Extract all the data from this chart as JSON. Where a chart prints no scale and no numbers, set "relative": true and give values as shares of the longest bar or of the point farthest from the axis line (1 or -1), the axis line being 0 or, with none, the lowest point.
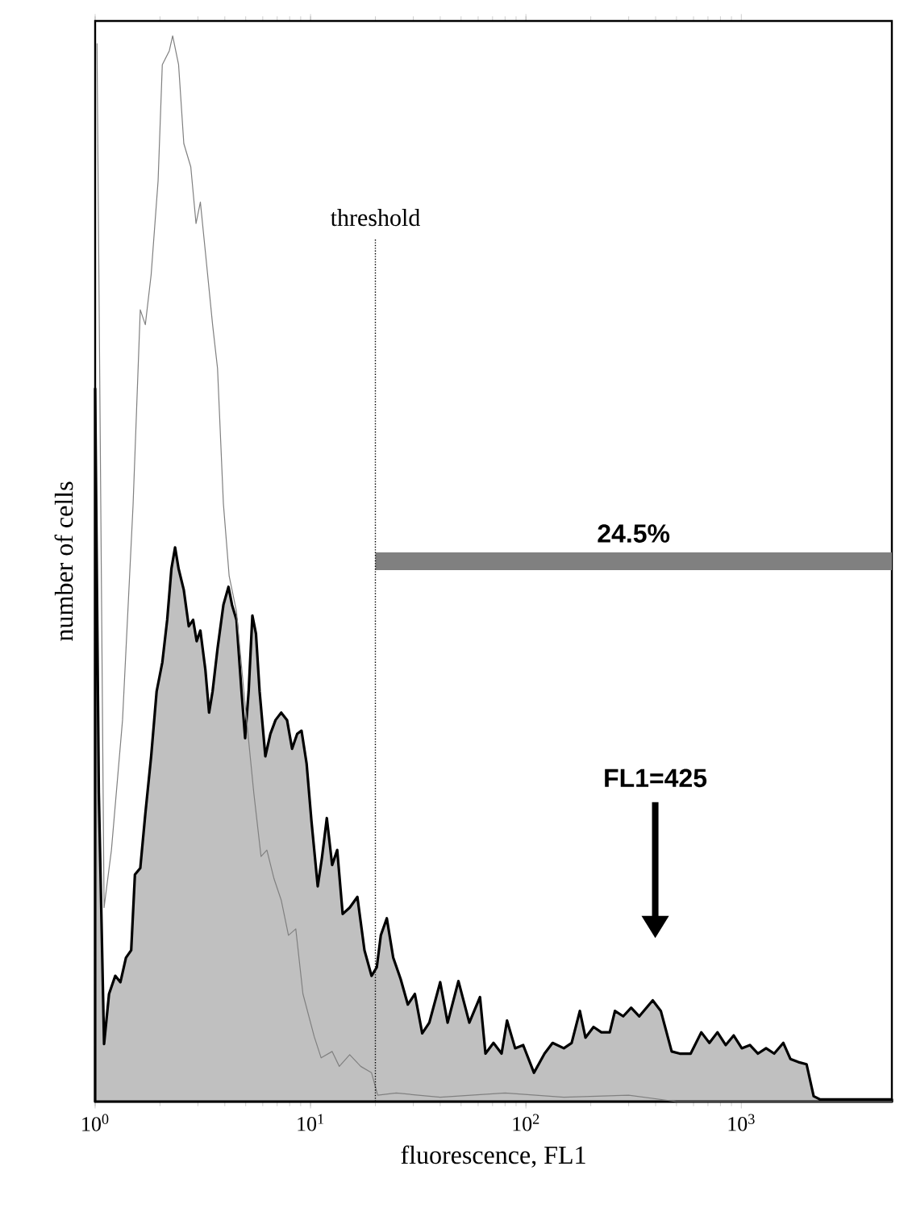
{
  "chart_data": {
    "type": "area",
    "xlabel": "fluorescence, FL1",
    "ylabel": "number of cells",
    "log": "x",
    "relative": true,
    "tick_labels": "x",
    "xlim": [
      1,
      5000
    ],
    "xticks": [
      {
        "value": 1,
        "label": "10$^{0}$"
      },
      {
        "value": 10,
        "label": "10$^{1}$"
      },
      {
        "value": 100,
        "label": "10$^{2}$"
      },
      {
        "value": 1000,
        "label": "10$^{3}$"
      }
    ],
    "series": [
      {
        "color": "#c0c0c0",
        "x": [
          1,
          1.04,
          1.1,
          1.16,
          1.24,
          1.31,
          1.39,
          1.47,
          1.53,
          1.62,
          1.71,
          1.82,
          1.93,
          2.05,
          2.16,
          2.26,
          2.35,
          2.44,
          2.58,
          2.72,
          2.85,
          2.96,
          3.08,
          3.25,
          3.38,
          3.51,
          3.7,
          3.94,
          4.16,
          4.32,
          4.53,
          4.78,
          4.97,
          5.16,
          5.37,
          5.58,
          5.8,
          6.17,
          6.51,
          6.88,
          7.31,
          7.78,
          8.21,
          8.67,
          9.08,
          9.59,
          10.1,
          10.8,
          11.3,
          11.9,
          12.6,
          13.3,
          14.1,
          15.2,
          16.5,
          17.8,
          19.2,
          20.3,
          21.2,
          22.6,
          24.2,
          26.2,
          28.3,
          30.5,
          33,
          35.6,
          40,
          43.3,
          48.6,
          54.6,
          61.2,
          64.9,
          70.7,
          77.1,
          81.7,
          89.1,
          97.1,
          109,
          122,
          133,
          150,
          163,
          178,
          189,
          206,
          224,
          245,
          259,
          283,
          308,
          336,
          388,
          423,
          475,
          518,
          582,
          652,
          711,
          775,
          846,
          922,
          1005,
          1096,
          1195,
          1303,
          1421,
          1567,
          1690,
          1842,
          2009,
          2167,
          2323,
          3680,
          5000
        ],
        "values": [
          0.669,
          0.29,
          0.054,
          0.101,
          0.118,
          0.112,
          0.135,
          0.142,
          0.213,
          0.219,
          0.27,
          0.324,
          0.385,
          0.412,
          0.452,
          0.5,
          0.52,
          0.5,
          0.48,
          0.446,
          0.452,
          0.432,
          0.442,
          0.405,
          0.365,
          0.385,
          0.425,
          0.466,
          0.483,
          0.466,
          0.452,
          0.385,
          0.341,
          0.385,
          0.456,
          0.439,
          0.385,
          0.324,
          0.345,
          0.358,
          0.365,
          0.358,
          0.331,
          0.345,
          0.348,
          0.317,
          0.263,
          0.202,
          0.229,
          0.266,
          0.222,
          0.236,
          0.176,
          0.182,
          0.192,
          0.142,
          0.118,
          0.126,
          0.156,
          0.172,
          0.135,
          0.115,
          0.091,
          0.101,
          0.064,
          0.074,
          0.112,
          0.074,
          0.113,
          0.074,
          0.098,
          0.045,
          0.055,
          0.045,
          0.076,
          0.05,
          0.053,
          0.027,
          0.045,
          0.055,
          0.05,
          0.055,
          0.085,
          0.06,
          0.07,
          0.065,
          0.065,
          0.085,
          0.08,
          0.088,
          0.08,
          0.095,
          0.085,
          0.047,
          0.045,
          0.045,
          0.065,
          0.055,
          0.065,
          0.053,
          0.062,
          0.05,
          0.053,
          0.045,
          0.05,
          0.045,
          0.055,
          0.04,
          0.037,
          0.035,
          0.005,
          0.002,
          0.002,
          0.002
        ]
      },
      {
        "type": "line",
        "color": "#808080",
        "x": [
          1.02,
          1.1,
          1.19,
          1.34,
          1.5,
          1.62,
          1.71,
          1.82,
          1.96,
          2.05,
          2.21,
          2.29,
          2.44,
          2.58,
          2.78,
          2.94,
          3.08,
          3.25,
          3.51,
          3.7,
          3.94,
          4.19,
          4.53,
          4.97,
          5.45,
          5.89,
          6.27,
          6.77,
          7.31,
          7.9,
          8.54,
          9.22,
          10.4,
          11.2,
          12.6,
          13.6,
          15.2,
          17.1,
          19.2,
          20.5,
          25,
          40,
          80,
          150,
          300,
          500,
          5000
        ],
        "values": [
          0.993,
          0.182,
          0.236,
          0.358,
          0.56,
          0.743,
          0.729,
          0.776,
          0.864,
          0.973,
          0.986,
          1,
          0.973,
          0.899,
          0.877,
          0.824,
          0.844,
          0.797,
          0.729,
          0.688,
          0.561,
          0.493,
          0.46,
          0.372,
          0.29,
          0.23,
          0.236,
          0.209,
          0.189,
          0.156,
          0.162,
          0.101,
          0.061,
          0.041,
          0.047,
          0.033,
          0.044,
          0.033,
          0.027,
          0.006,
          0.008,
          0.004,
          0.008,
          0.004,
          0.006,
          0,
          0
        ]
      },
      {
        "type": "line",
        "color": "#808080",
        "x": [
          20,
          5000
        ],
        "values": [
          0.507,
          0.507
        ]
      }
    ],
    "ref_lines": [
      {
        "axis": "x",
        "value": 20,
        "label": "threshold",
        "line_style": "dotted",
        "color": "#000000"
      }
    ],
    "annotations": [
      {
        "text": "24.5%",
        "x": 316,
        "y": 0.507
      },
      "FL1=425"
    ]
  }
}
